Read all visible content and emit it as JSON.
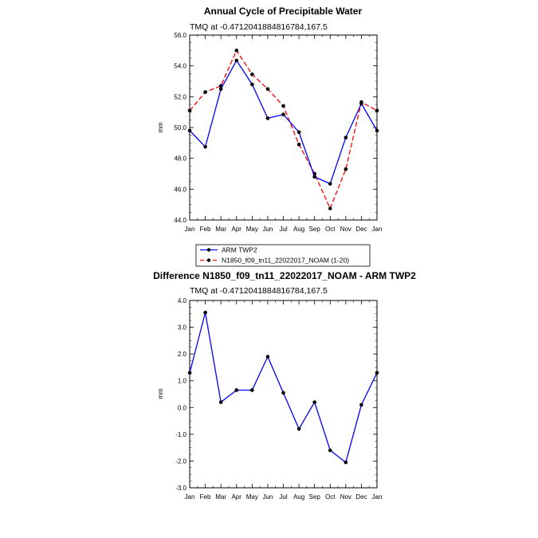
{
  "chart_data": [
    {
      "type": "line",
      "title": "Annual Cycle of Precipitable Water",
      "subtitle": "TMQ at -0.4712041884816784,167.5",
      "xlabel": "",
      "ylabel": "mm",
      "categories": [
        "Jan",
        "Feb",
        "Mar",
        "Apr",
        "May",
        "Jun",
        "Jul",
        "Aug",
        "Sep",
        "Oct",
        "Nov",
        "Dec",
        "Jan"
      ],
      "ylim": [
        44.0,
        56.0
      ],
      "yticks": [
        "44.0",
        "46.0",
        "48.0",
        "50.0",
        "52.0",
        "54.0",
        "56.0"
      ],
      "grid": false,
      "legend": "bottom",
      "series": [
        {
          "name": "ARM TWP2",
          "color": "#0000ff",
          "dash": "solid",
          "values": [
            49.8,
            48.75,
            52.5,
            54.35,
            52.8,
            50.6,
            50.85,
            49.7,
            46.8,
            46.35,
            49.35,
            51.55,
            49.8
          ]
        },
        {
          "name": "N1850_f09_tn11_22022017_NOAM (1-20)",
          "color": "#ff0000",
          "dash": "dashed",
          "values": [
            51.1,
            52.3,
            52.7,
            55.0,
            53.45,
            52.5,
            51.4,
            48.9,
            47.0,
            44.75,
            47.3,
            51.65,
            51.1
          ]
        }
      ]
    },
    {
      "type": "line",
      "title": "Difference N1850_f09_tn11_22022017_NOAM - ARM TWP2",
      "subtitle": "TMQ at -0.4712041884816784,167.5",
      "xlabel": "",
      "ylabel": "mm",
      "categories": [
        "Jan",
        "Feb",
        "Mar",
        "Apr",
        "May",
        "Jun",
        "Jul",
        "Aug",
        "Sep",
        "Oct",
        "Nov",
        "Dec",
        "Jan"
      ],
      "ylim": [
        -3.0,
        4.0
      ],
      "yticks": [
        "-3.0",
        "-2.0",
        "-1.0",
        "0.0",
        "1.0",
        "2.0",
        "3.0",
        "4.0"
      ],
      "grid": false,
      "series": [
        {
          "name": "",
          "color": "#0000ff",
          "dash": "solid",
          "values": [
            1.3,
            3.55,
            0.2,
            0.65,
            0.65,
            1.9,
            0.55,
            -0.8,
            0.2,
            -1.6,
            -2.05,
            0.1,
            1.3
          ]
        }
      ]
    }
  ]
}
